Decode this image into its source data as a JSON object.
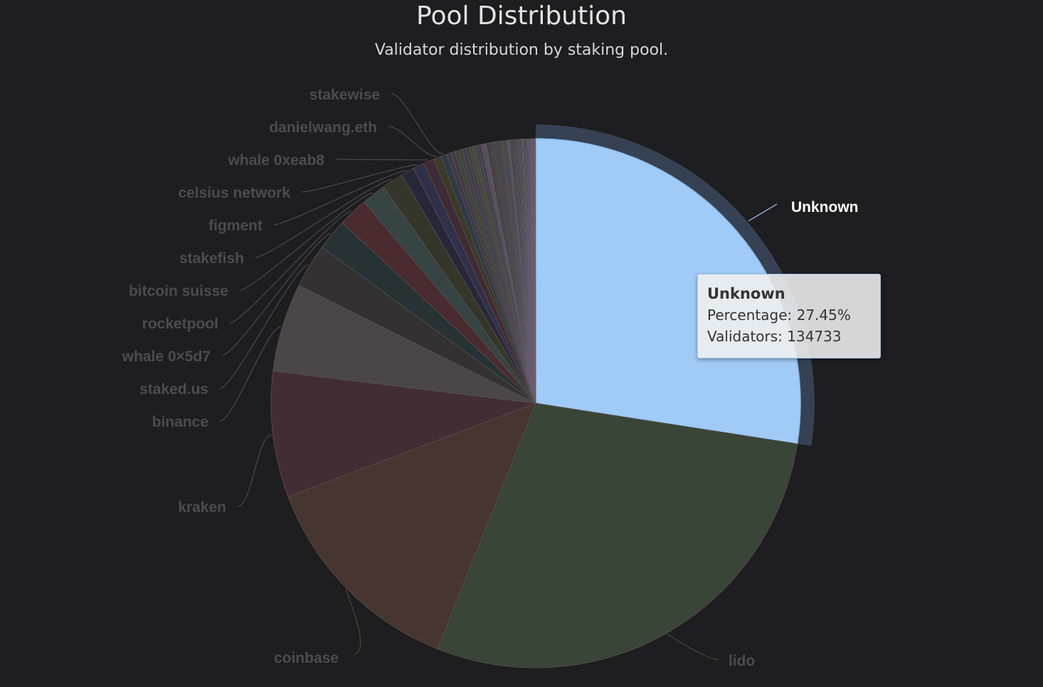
{
  "chart_data": {
    "type": "pie",
    "title": "Pool Distribution",
    "subtitle": "Validator distribution by staking pool.",
    "slices": [
      {
        "name": "Unknown",
        "value": 27.45,
        "color": "#a0cbf6"
      },
      {
        "name": "lido",
        "value": 28.6,
        "color": "#384537"
      },
      {
        "name": "coinbase",
        "value": 13.2,
        "color": "#46362f"
      },
      {
        "name": "kraken",
        "value": 7.7,
        "color": "#432d35"
      },
      {
        "name": "binance",
        "value": 5.4,
        "color": "#4b4647"
      },
      {
        "name": "staked.us",
        "value": 2.7,
        "color": "#343133"
      },
      {
        "name": "whale 0×5d7",
        "value": 1.9,
        "color": "#273234"
      },
      {
        "name": "rocketpool",
        "value": 1.8,
        "color": "#4a2b2f"
      },
      {
        "name": "bitcoin suisse",
        "value": 1.5,
        "color": "#374444"
      },
      {
        "name": "stakefish",
        "value": 1.3,
        "color": "#343629"
      },
      {
        "name": "figment",
        "value": 0.8,
        "color": "#26283a"
      },
      {
        "name": "celsius network",
        "value": 0.7,
        "color": "#30304a"
      },
      {
        "name": "whale 0xeab8",
        "value": 0.65,
        "color": "#3f2b34"
      },
      {
        "name": "danielwang.eth",
        "value": 0.45,
        "color": "#3c3a2b"
      },
      {
        "name": "stakewise",
        "value": 0.38,
        "color": "#2e3a44"
      }
    ],
    "highlighted": "Unknown",
    "tooltip": {
      "title": "Unknown",
      "percentage": "Percentage: 27.45%",
      "validators": "Validators: 134733"
    }
  }
}
